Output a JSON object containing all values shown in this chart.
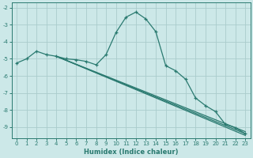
{
  "xlabel": "Humidex (Indice chaleur)",
  "bg_color": "#cce8e8",
  "grid_color": "#aacccc",
  "line_color": "#2a7a70",
  "xlim": [
    -0.5,
    23.5
  ],
  "ylim": [
    -9.65,
    -1.7
  ],
  "yticks": [
    -2,
    -3,
    -4,
    -5,
    -6,
    -7,
    -8,
    -9
  ],
  "xticks": [
    0,
    1,
    2,
    3,
    4,
    5,
    6,
    7,
    8,
    9,
    10,
    11,
    12,
    13,
    14,
    15,
    16,
    17,
    18,
    19,
    20,
    21,
    22,
    23
  ],
  "curve_x": [
    0,
    1,
    2,
    3,
    4,
    5,
    6,
    7,
    8,
    9,
    10,
    11,
    12,
    13,
    14,
    15,
    16,
    17,
    18,
    19,
    20,
    21,
    22,
    23
  ],
  "curve_y": [
    -5.25,
    -5.0,
    -4.55,
    -4.75,
    -4.85,
    -5.0,
    -5.05,
    -5.15,
    -5.35,
    -4.75,
    -3.45,
    -2.55,
    -2.25,
    -2.65,
    -3.4,
    -5.4,
    -5.7,
    -6.2,
    -7.3,
    -7.75,
    -8.1,
    -8.85,
    -9.05,
    -9.4
  ],
  "line2_x": [
    4,
    23
  ],
  "line2_y": [
    -4.85,
    -9.4
  ],
  "line3_x": [
    4,
    23
  ],
  "line3_y": [
    -4.85,
    -9.5
  ],
  "line4_x": [
    4,
    23
  ],
  "line4_y": [
    -4.85,
    -9.28
  ]
}
